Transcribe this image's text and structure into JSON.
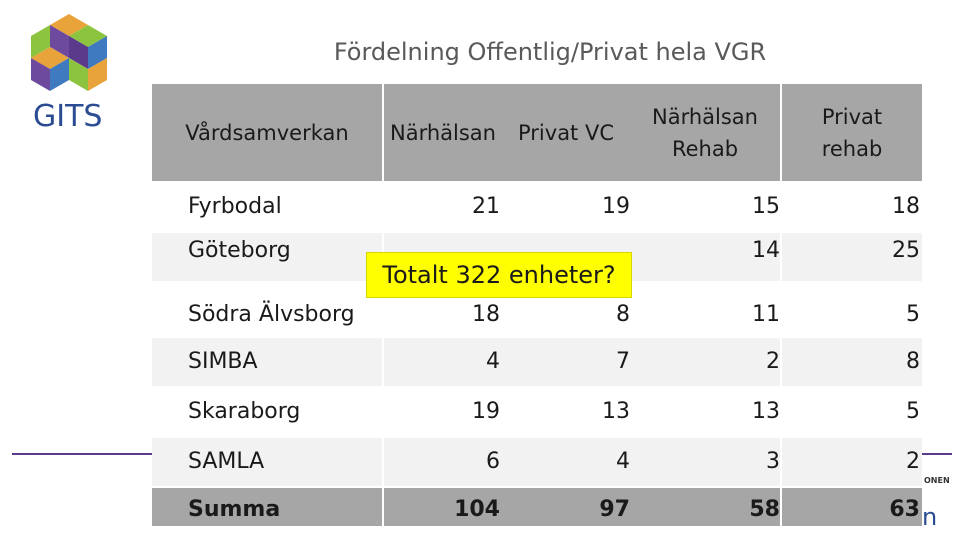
{
  "logo": {
    "text": "GITS",
    "name": "gits-logo"
  },
  "title": "Fördelning Offentlig/Privat hela VGR",
  "table": {
    "headers": [
      "Vårdsamverkan",
      "Närhälsan",
      "Privat VC",
      "Närhälsan\nRehab",
      "Privat\nrehab"
    ],
    "rows": [
      {
        "name": "Fyrbodal",
        "values": [
          "21",
          "19",
          "15",
          "18"
        ]
      },
      {
        "name": "Göteborg",
        "values": [
          "",
          "",
          "14",
          "25"
        ]
      },
      {
        "name": "Södra Älvsborg",
        "values": [
          "18",
          "8",
          "11",
          "5"
        ]
      },
      {
        "name": "SIMBA",
        "values": [
          "4",
          "7",
          "2",
          "8"
        ]
      },
      {
        "name": "Skaraborg",
        "values": [
          "19",
          "13",
          "13",
          "5"
        ]
      },
      {
        "name": "SAMLA",
        "values": [
          "6",
          "4",
          "3",
          "2"
        ]
      }
    ],
    "summary": {
      "name": "Summa",
      "values": [
        "104",
        "97",
        "58",
        "63"
      ]
    }
  },
  "callout": "Totalt 322 enheter?",
  "footer": {
    "small_text": "ONEN",
    "logo_text": "n"
  },
  "colors": {
    "header_bg": "#a6a6a6",
    "row_alt": "#f2f2f2",
    "callout": "#ffff00",
    "accent": "#5b3a8c"
  }
}
